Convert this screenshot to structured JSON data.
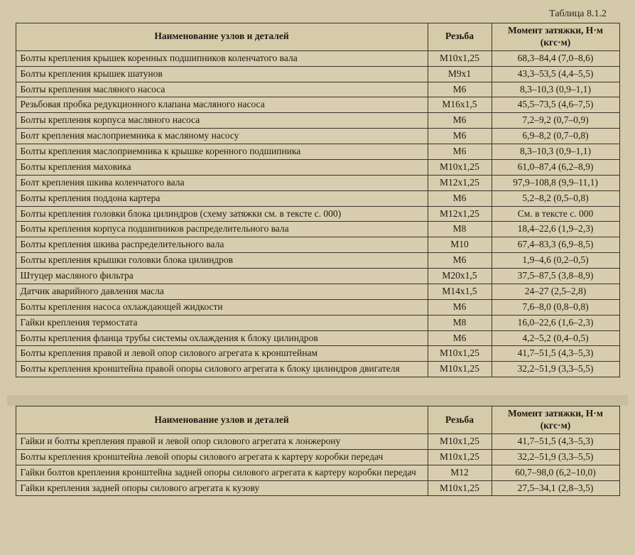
{
  "caption": "Таблица 8.1.2",
  "headers": {
    "name": "Наименование узлов и деталей",
    "thread": "Резьба",
    "torque": "Момент затяжки, Н·м (кгс·м)"
  },
  "table1_rows": [
    {
      "name": "Болты крепления крышек коренных подшипников коленчатого вала",
      "thread": "М10х1,25",
      "torque": "68,3–84,4 (7,0–8,6)"
    },
    {
      "name": "Болты крепления крышек шатунов",
      "thread": "М9х1",
      "torque": "43,3–53,5 (4,4–5,5)"
    },
    {
      "name": "Болты крепления масляного насоса",
      "thread": "М6",
      "torque": "8,3–10,3 (0,9–1,1)"
    },
    {
      "name": "Резьбовая пробка редукционного клапана масляного насоса",
      "thread": "М16х1,5",
      "torque": "45,5–73,5 (4,6–7,5)"
    },
    {
      "name": "Болты крепления корпуса масляного насоса",
      "thread": "М6",
      "torque": "7,2–9,2 (0,7–0,9)"
    },
    {
      "name": "Болт крепления маслоприемника к масляному насосу",
      "thread": "М6",
      "torque": "6,9–8,2 (0,7–0,8)"
    },
    {
      "name": "Болты крепления маслоприемника к крышке коренного подшипника",
      "thread": "М6",
      "torque": "8,3–10,3 (0,9–1,1)"
    },
    {
      "name": "Болты крепления маховика",
      "thread": "М10х1,25",
      "torque": "61,0–87,4 (6,2–8,9)"
    },
    {
      "name": "Болт крепления шкива коленчатого вала",
      "thread": "М12х1,25",
      "torque": "97,9–108,8 (9,9–11,1)"
    },
    {
      "name": "Болты крепления поддона картера",
      "thread": "М6",
      "torque": "5,2–8,2 (0,5–0,8)"
    },
    {
      "name": "Болты крепления головки блока цилиндров (схему затяжки см. в тексте с. 000)",
      "thread": "М12х1,25",
      "torque": "См. в тексте с. 000"
    },
    {
      "name": "Болты крепления корпуса подшипников распределительного вала",
      "thread": "М8",
      "torque": "18,4–22,6 (1,9–2,3)"
    },
    {
      "name": "Болты крепления шкива распределительного вала",
      "thread": "М10",
      "torque": "67,4–83,3 (6,9–8,5)"
    },
    {
      "name": "Болты крепления крышки головки блока цилиндров",
      "thread": "М6",
      "torque": "1,9–4,6 (0,2–0,5)"
    },
    {
      "name": "Штуцер масляного фильтра",
      "thread": "М20х1,5",
      "torque": "37,5–87,5 (3,8–8,9)"
    },
    {
      "name": "Датчик аварийного давления масла",
      "thread": "М14х1,5",
      "torque": "24–27 (2,5–2,8)"
    },
    {
      "name": "Болты крепления насоса охлаждающей жидкости",
      "thread": "М6",
      "torque": "7,6–8,0 (0,8–0,8)"
    },
    {
      "name": "Гайки крепления термостата",
      "thread": "М8",
      "torque": "16,0–22,6 (1,6–2,3)"
    },
    {
      "name": "Болты крепления фланца трубы системы охлаждения к блоку цилиндров",
      "thread": "М6",
      "torque": "4,2–5,2 (0,4–0,5)"
    },
    {
      "name": "Болты крепления правой и левой опор силового агрегата к кронштейнам",
      "thread": "М10х1,25",
      "torque": "41,7–51,5 (4,3–5,3)"
    },
    {
      "name": "Болты крепления кронштейна правой опоры силового агрегата к блоку цилиндров двигателя",
      "thread": "М10х1,25",
      "torque": "32,2–51,9 (3,3–5,5)"
    }
  ],
  "table2_rows": [
    {
      "name": "Гайки и болты крепления правой и левой опор силового агрегата к лонжерону",
      "thread": "М10х1,25",
      "torque": "41,7–51,5 (4,3–5,3)"
    },
    {
      "name": "Болты крепления кронштейна левой опоры силового агрегата к картеру коробки передач",
      "thread": "М10х1,25",
      "torque": "32,2–51,9 (3,3–5,5)"
    },
    {
      "name": "Гайки болтов крепления кронштейна задней опоры силового агрегата к картеру коробки передач",
      "thread": "М12",
      "torque": "60,7–98,0 (6,2–10,0)"
    },
    {
      "name": "Гайки крепления задней опоры силового агрегата к кузову",
      "thread": "М10х1,25",
      "torque": "27,5–34,1 (2,8–3,5)"
    }
  ],
  "colors": {
    "page_bg": "#d4c9a8",
    "table_bg": "#d8cdaf",
    "border": "#3a332a",
    "text": "#1f1a14"
  }
}
